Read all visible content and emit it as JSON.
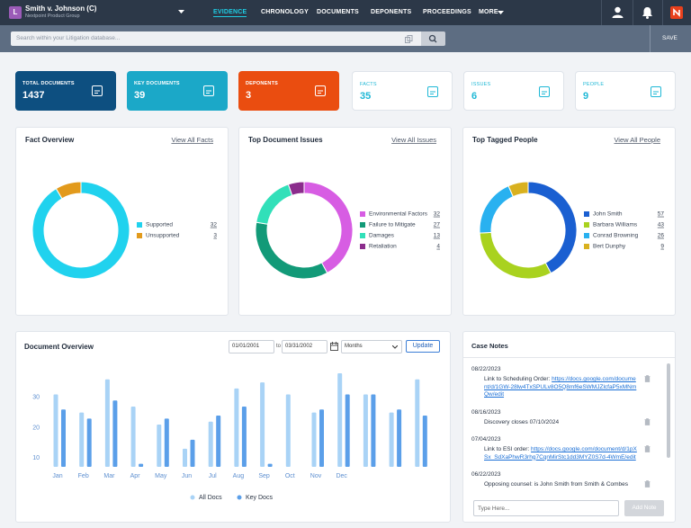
{
  "header": {
    "badge": "L",
    "case_title": "Smith v. Johnson (C)",
    "case_subtitle": "Nextpoint Product Group",
    "nav": [
      "EVIDENCE",
      "CHRONOLOGY",
      "DOCUMENTS",
      "DEPONENTS",
      "PROCEEDINGS",
      "MORE"
    ]
  },
  "search": {
    "placeholder": "Search within your Litigation database...",
    "save": "SAVE"
  },
  "stats": [
    {
      "label": "TOTAL DOCUMENTS",
      "value": 1437
    },
    {
      "label": "KEY DOCUMENTS",
      "value": 39
    },
    {
      "label": "DEPONENTS",
      "value": 3
    },
    {
      "label": "FACTS",
      "value": 35
    },
    {
      "label": "ISSUES",
      "value": 6
    },
    {
      "label": "PEOPLE",
      "value": 9
    }
  ],
  "chart_data": [
    {
      "type": "donut",
      "title": "Fact Overview",
      "link": "View All Facts",
      "legend": "right",
      "categories": [
        "Supported",
        "Unsupported"
      ],
      "values": [
        32,
        3
      ],
      "colors": [
        "#20d2ee",
        "#e29a1c"
      ]
    },
    {
      "type": "donut",
      "title": "Top Document Issues",
      "link": "View All Issues",
      "legend": "right",
      "categories": [
        "Environmental Factors",
        "Failure to Mitigate",
        "Damages",
        "Retaliation"
      ],
      "values": [
        32,
        27,
        13,
        4
      ],
      "colors": [
        "#d75de3",
        "#129a78",
        "#31e0b9",
        "#8b2c8c"
      ]
    },
    {
      "type": "donut",
      "title": "Top Tagged People",
      "link": "View All People",
      "legend": "right",
      "categories": [
        "John Smith",
        "Barbara Williams",
        "Conrad Browning",
        "Bert Dunphy"
      ],
      "values": [
        57,
        43,
        26,
        9
      ],
      "colors": [
        "#1a5fd1",
        "#a9d21f",
        "#29b1f0",
        "#d9b11f"
      ]
    },
    {
      "type": "bar",
      "title": "Document Overview",
      "legend": "bottom",
      "grid": false,
      "categories": [
        "Jan",
        "Feb",
        "Mar",
        "Apr",
        "May",
        "Jun",
        "Jul",
        "Aug",
        "Sep",
        "Oct",
        "Nov",
        "Dec",
        null,
        null,
        null
      ],
      "series": [
        {
          "name": "All Docs",
          "color": "#a9d3f6",
          "values": [
            31,
            25,
            36,
            27,
            21,
            13,
            22,
            33,
            35,
            31,
            25,
            38,
            31,
            25,
            36
          ]
        },
        {
          "name": "Key Docs",
          "color": "#5b9fe9",
          "values": [
            26,
            23,
            29,
            8,
            23,
            16,
            24,
            27,
            8,
            null,
            26,
            31,
            31,
            26,
            24
          ]
        }
      ],
      "ylim": [
        7,
        41
      ],
      "yticks": [
        10,
        20,
        30
      ]
    }
  ],
  "filters": {
    "from": "01/01/2001",
    "to_label": "to",
    "to": "03/31/2002",
    "interval": "Months",
    "button": "Update"
  },
  "case_notes": {
    "title": "Case Notes",
    "placeholder": "Type Here...",
    "button": "Add Note",
    "items": [
      {
        "date": "08/22/2023",
        "text": "Link to Scheduling Order:",
        "link": "https://docs.google.com/document/d/1GW-28lw4TxSPULv8O5Q8mf6eSWMJZlcfaP5xMNmQw/edit"
      },
      {
        "date": "08/16/2023",
        "text": "Discovery closes 07/10/2024"
      },
      {
        "date": "07/04/2023",
        "text": "Link to ESI order:",
        "link": "https://docs.google.com/document/d/1pXSx_SdXaPhwR3rhg7CqnMirStc1dd3MYZ0S7d-4WmE/edit"
      },
      {
        "date": "06/22/2023",
        "text": "Opposing counsel: is John Smith from Smith & Combes"
      }
    ]
  }
}
